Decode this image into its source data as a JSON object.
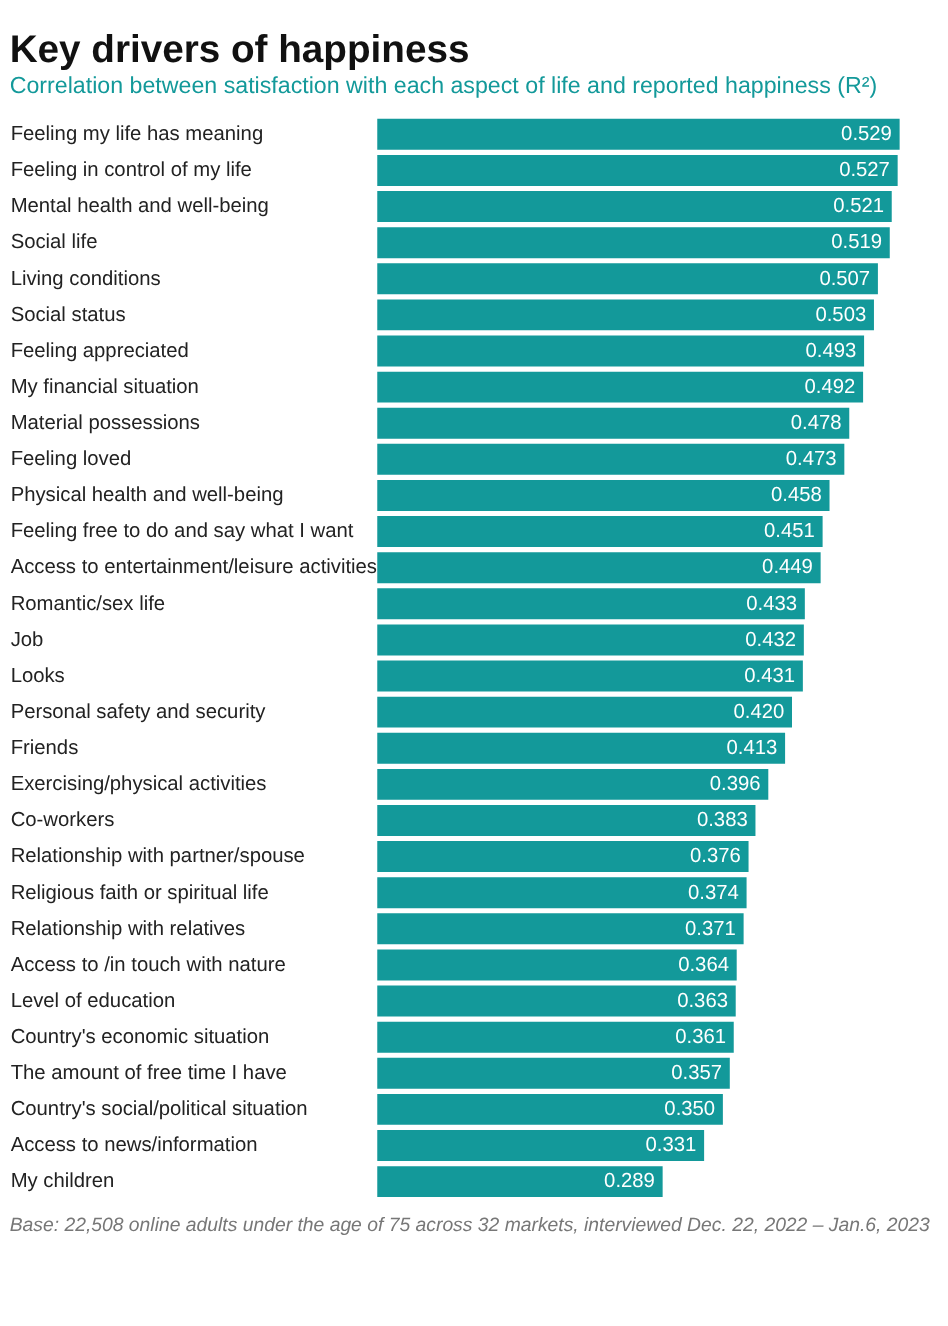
{
  "chart_data": {
    "type": "bar",
    "orientation": "horizontal",
    "title": "Key drivers of happiness",
    "subtitle": "Correlation between satisfaction with each aspect of life and reported happiness (R²)",
    "categories": [
      "Feeling my life has meaning",
      "Feeling in control of my life",
      "Mental health and well-being",
      "Social life",
      "Living conditions",
      "Social status",
      "Feeling appreciated",
      "My financial situation",
      "Material possessions",
      "Feeling loved",
      "Physical health and well-being",
      "Feeling free to do and say what I want",
      "Access to entertainment/leisure activities",
      "Romantic/sex life",
      "Job",
      "Looks",
      "Personal safety and security",
      "Friends",
      "Exercising/physical activities",
      "Co-workers",
      "Relationship with partner/spouse",
      "Religious faith or spiritual life",
      "Relationship with relatives",
      "Access to /in touch with nature",
      "Level of education",
      "Country's economic situation",
      "The amount of free time I have",
      "Country's social/political situation",
      "Access to news/information",
      "My children"
    ],
    "values": [
      0.529,
      0.527,
      0.521,
      0.519,
      0.507,
      0.503,
      0.493,
      0.492,
      0.478,
      0.473,
      0.458,
      0.451,
      0.449,
      0.433,
      0.432,
      0.431,
      0.42,
      0.413,
      0.396,
      0.383,
      0.376,
      0.374,
      0.371,
      0.364,
      0.363,
      0.361,
      0.357,
      0.35,
      0.331,
      0.289
    ],
    "value_labels": [
      "0.529",
      "0.527",
      "0.521",
      "0.519",
      "0.507",
      "0.503",
      "0.493",
      "0.492",
      "0.478",
      "0.473",
      "0.458",
      "0.451",
      "0.449",
      "0.433",
      "0.432",
      "0.431",
      "0.420",
      "0.413",
      "0.396",
      "0.383",
      "0.376",
      "0.374",
      "0.371",
      "0.364",
      "0.363",
      "0.361",
      "0.357",
      "0.350",
      "0.331",
      "0.289"
    ],
    "color": "#13999a",
    "grid": false,
    "annotations": [
      "Base: 22,508 online adults under the age of 75 across 32 markets, interviewed Dec. 22, 2022 – Jan.6, 2023"
    ]
  }
}
